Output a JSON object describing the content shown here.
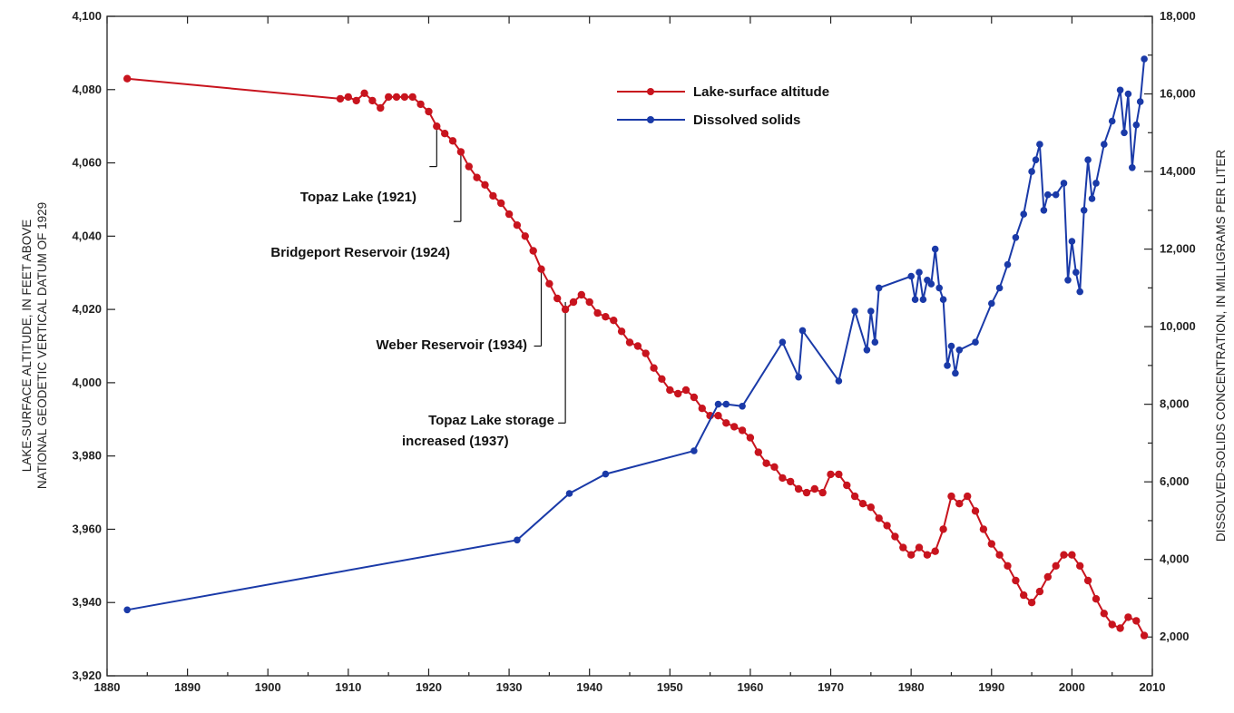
{
  "colors": {
    "altitude": "#c8141e",
    "solids": "#1a3aa8",
    "axis": "#222222"
  },
  "chart_data": {
    "type": "line",
    "title": "",
    "xlim": [
      1880,
      2010
    ],
    "x_ticks": [
      1880,
      1890,
      1900,
      1910,
      1920,
      1930,
      1940,
      1950,
      1960,
      1970,
      1980,
      1990,
      2000,
      2010
    ],
    "y_left": {
      "label_line1": "LAKE-SURFACE ALTITUDE, IN FEET ABOVE",
      "label_line2": "NATIONAL GEODETIC VERTICAL DATUM OF 1929",
      "lim": [
        3920,
        4100
      ],
      "ticks": [
        3920,
        3940,
        3960,
        3980,
        4000,
        4020,
        4040,
        4060,
        4080,
        4100
      ],
      "tick_labels": [
        "3,920",
        "3,940",
        "3,960",
        "3,980",
        "4,000",
        "4,020",
        "4,040",
        "4,060",
        "4,080",
        "4,100"
      ]
    },
    "y_right": {
      "label": "DISSOLVED-SOLIDS CONCENTRATION, IN MILLIGRAMS PER LITER",
      "lim": [
        1000,
        18000
      ],
      "ticks": [
        2000,
        4000,
        6000,
        8000,
        10000,
        12000,
        14000,
        16000,
        18000
      ],
      "tick_labels": [
        "2,000",
        "4,000",
        "6,000",
        "8,000",
        "10,000",
        "12,000",
        "14,000",
        "16,000",
        "18,000"
      ]
    },
    "legend": {
      "position": "top-center",
      "altitude_label": "Lake-surface altitude",
      "solids_label": "Dissolved solids"
    },
    "series": [
      {
        "name": "Lake-surface altitude",
        "axis": "left",
        "points": [
          [
            1882.5,
            4083
          ],
          [
            1909,
            4077.5
          ],
          [
            1910,
            4078
          ],
          [
            1911,
            4077
          ],
          [
            1912,
            4079
          ],
          [
            1913,
            4077
          ],
          [
            1914,
            4075
          ],
          [
            1915,
            4078
          ],
          [
            1916,
            4078
          ],
          [
            1917,
            4078
          ],
          [
            1918,
            4078
          ],
          [
            1919,
            4076
          ],
          [
            1920,
            4074
          ],
          [
            1921,
            4070
          ],
          [
            1922,
            4068
          ],
          [
            1923,
            4066
          ],
          [
            1924,
            4063
          ],
          [
            1925,
            4059
          ],
          [
            1926,
            4056
          ],
          [
            1927,
            4054
          ],
          [
            1928,
            4051
          ],
          [
            1929,
            4049
          ],
          [
            1930,
            4046
          ],
          [
            1931,
            4043
          ],
          [
            1932,
            4040
          ],
          [
            1933,
            4036
          ],
          [
            1934,
            4031
          ],
          [
            1935,
            4027
          ],
          [
            1936,
            4023
          ],
          [
            1937,
            4020
          ],
          [
            1938,
            4022
          ],
          [
            1939,
            4024
          ],
          [
            1940,
            4022
          ],
          [
            1941,
            4019
          ],
          [
            1942,
            4018
          ],
          [
            1943,
            4017
          ],
          [
            1944,
            4014
          ],
          [
            1945,
            4011
          ],
          [
            1946,
            4010
          ],
          [
            1947,
            4008
          ],
          [
            1948,
            4004
          ],
          [
            1949,
            4001
          ],
          [
            1950,
            3998
          ],
          [
            1951,
            3997
          ],
          [
            1952,
            3998
          ],
          [
            1953,
            3996
          ],
          [
            1954,
            3993
          ],
          [
            1955,
            3991
          ],
          [
            1956,
            3991
          ],
          [
            1957,
            3989
          ],
          [
            1958,
            3988
          ],
          [
            1959,
            3987
          ],
          [
            1960,
            3985
          ],
          [
            1961,
            3981
          ],
          [
            1962,
            3978
          ],
          [
            1963,
            3977
          ],
          [
            1964,
            3974
          ],
          [
            1965,
            3973
          ],
          [
            1966,
            3971
          ],
          [
            1967,
            3970
          ],
          [
            1968,
            3971
          ],
          [
            1969,
            3970
          ],
          [
            1970,
            3975
          ],
          [
            1971,
            3975
          ],
          [
            1972,
            3972
          ],
          [
            1973,
            3969
          ],
          [
            1974,
            3967
          ],
          [
            1975,
            3966
          ],
          [
            1976,
            3963
          ],
          [
            1977,
            3961
          ],
          [
            1978,
            3958
          ],
          [
            1979,
            3955
          ],
          [
            1980,
            3953
          ],
          [
            1981,
            3955
          ],
          [
            1982,
            3953
          ],
          [
            1983,
            3954
          ],
          [
            1984,
            3960
          ],
          [
            1985,
            3969
          ],
          [
            1986,
            3967
          ],
          [
            1987,
            3969
          ],
          [
            1988,
            3965
          ],
          [
            1989,
            3960
          ],
          [
            1990,
            3956
          ],
          [
            1991,
            3953
          ],
          [
            1992,
            3950
          ],
          [
            1993,
            3946
          ],
          [
            1994,
            3942
          ],
          [
            1995,
            3940
          ],
          [
            1996,
            3943
          ],
          [
            1997,
            3947
          ],
          [
            1998,
            3950
          ],
          [
            1999,
            3953
          ],
          [
            2000,
            3953
          ],
          [
            2001,
            3950
          ],
          [
            2002,
            3946
          ],
          [
            2003,
            3941
          ],
          [
            2004,
            3937
          ],
          [
            2005,
            3934
          ],
          [
            2006,
            3933
          ],
          [
            2007,
            3936
          ],
          [
            2008,
            3935
          ],
          [
            2009,
            3931
          ]
        ]
      },
      {
        "name": "Dissolved solids",
        "axis": "right",
        "points": [
          [
            1882.5,
            2700
          ],
          [
            1931,
            4500
          ],
          [
            1937.5,
            5700
          ],
          [
            1942,
            6200
          ],
          [
            1953,
            6800
          ],
          [
            1956,
            8000
          ],
          [
            1957,
            8000
          ],
          [
            1959,
            7950
          ],
          [
            1964,
            9600
          ],
          [
            1966,
            8700
          ],
          [
            1966.5,
            9900
          ],
          [
            1971,
            8600
          ],
          [
            1973,
            10400
          ],
          [
            1974.5,
            9400
          ],
          [
            1975,
            10400
          ],
          [
            1975.5,
            9600
          ],
          [
            1976,
            11000
          ],
          [
            1980,
            11300
          ],
          [
            1980.5,
            10700
          ],
          [
            1981,
            11400
          ],
          [
            1981.5,
            10700
          ],
          [
            1982,
            11200
          ],
          [
            1982.5,
            11100
          ],
          [
            1983,
            12000
          ],
          [
            1983.5,
            11000
          ],
          [
            1984,
            10700
          ],
          [
            1984.5,
            9000
          ],
          [
            1985,
            9500
          ],
          [
            1985.5,
            8800
          ],
          [
            1986,
            9400
          ],
          [
            1988,
            9600
          ],
          [
            1990,
            10600
          ],
          [
            1991,
            11000
          ],
          [
            1992,
            11600
          ],
          [
            1993,
            12300
          ],
          [
            1994,
            12900
          ],
          [
            1995,
            14000
          ],
          [
            1995.5,
            14300
          ],
          [
            1996,
            14700
          ],
          [
            1996.5,
            13000
          ],
          [
            1997,
            13400
          ],
          [
            1998,
            13400
          ],
          [
            1999,
            13700
          ],
          [
            1999.5,
            11200
          ],
          [
            2000,
            12200
          ],
          [
            2000.5,
            11400
          ],
          [
            2001,
            10900
          ],
          [
            2001.5,
            13000
          ],
          [
            2002,
            14300
          ],
          [
            2002.5,
            13300
          ],
          [
            2003,
            13700
          ],
          [
            2004,
            14700
          ],
          [
            2005,
            15300
          ],
          [
            2006,
            16100
          ],
          [
            2006.5,
            15000
          ],
          [
            2007,
            16000
          ],
          [
            2007.5,
            14100
          ],
          [
            2008,
            15200
          ],
          [
            2008.5,
            15800
          ],
          [
            2009,
            16900
          ]
        ]
      }
    ],
    "annotations": [
      {
        "line1": "Topaz Lake (1921)",
        "line2": "",
        "x": 1921,
        "y_top": 4069,
        "y_bottom": 4059
      },
      {
        "line1": "Bridgeport Reservoir (1924)",
        "line2": "",
        "x": 1924,
        "y_top": 4063,
        "y_bottom": 4044
      },
      {
        "line1": "Weber Reservoir (1934)",
        "line2": "",
        "x": 1934,
        "y_top": 4031,
        "y_bottom": 4010
      },
      {
        "line1": "Topaz Lake storage",
        "line2": "increased (1937)",
        "x": 1937,
        "y_top": 4022,
        "y_bottom": 3989
      }
    ]
  }
}
